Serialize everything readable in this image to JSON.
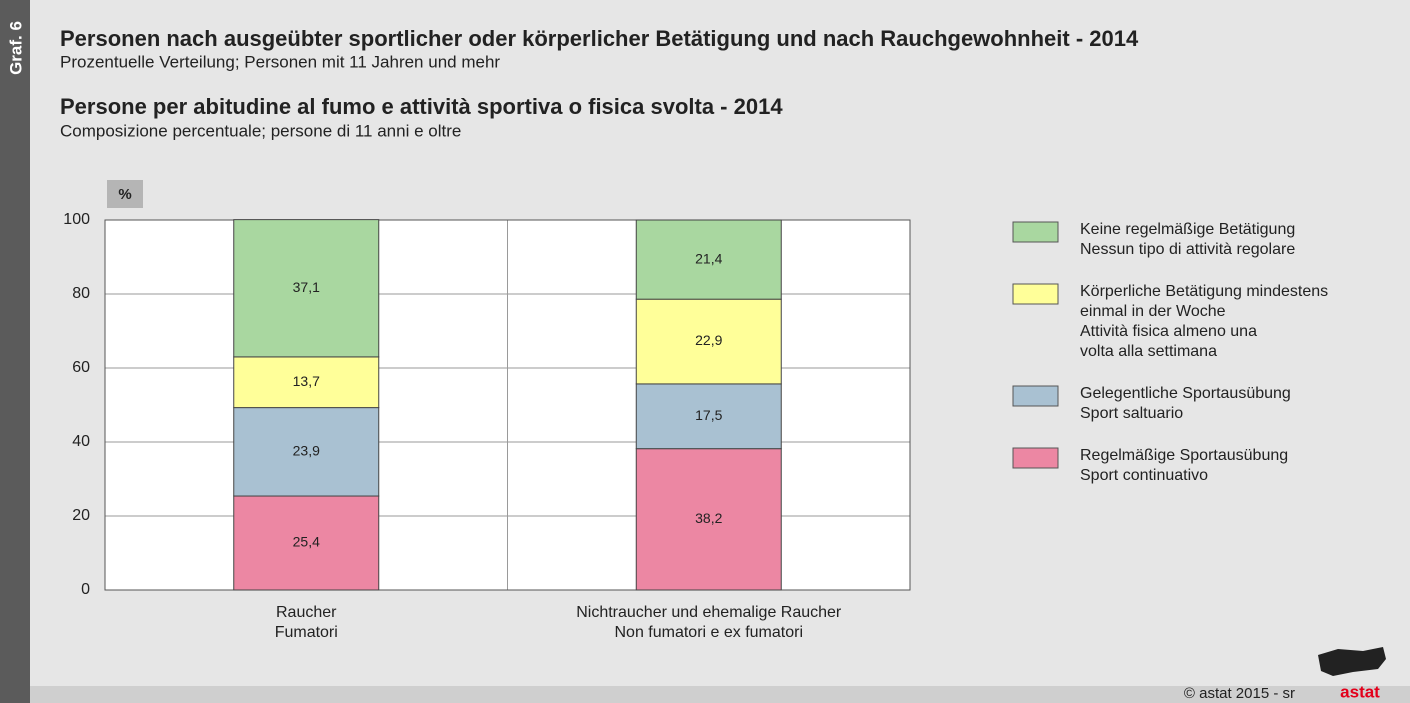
{
  "chart_data": {
    "type": "stacked_bar",
    "figure_label": "Graf. 6",
    "title": "Personen nach ausgeübter sportlicher oder körperlicher Betätigung und nach Rauchgewohnheit - 2014",
    "subtitle": "Prozentuelle Verteilung; Personen mit 11 Jahren und mehr",
    "title_2": "Persone per abitudine al fumo e attività sportiva o fisica svolta - 2014",
    "subtitle_2": "Composizione percentuale; persone di 11 anni e oltre",
    "unit_label": "%",
    "categories": [
      [
        "Raucher",
        "Fumatori"
      ],
      [
        "Nichtraucher und ehemalige Raucher",
        "Non fumatori e ex fumatori"
      ]
    ],
    "series": [
      {
        "name": [
          "Regelmäßige Sportausübung",
          "Sport continuativo"
        ],
        "color": "#ec87a3",
        "values": [
          25.4,
          38.2
        ],
        "value_labels": [
          "25,4",
          "38,2"
        ]
      },
      {
        "name": [
          "Gelegentliche Sportausübung",
          "Sport saltuario"
        ],
        "color": "#a9c1d2",
        "values": [
          23.9,
          17.5
        ],
        "value_labels": [
          "23,9",
          "17,5"
        ]
      },
      {
        "name": [
          "Körperliche Betätigung mindestens",
          "einmal in der Woche",
          "Attività fisica almeno una",
          "volta alla settimana"
        ],
        "color": "#ffff99",
        "values": [
          13.7,
          22.9
        ],
        "value_labels": [
          "13,7",
          "22,9"
        ]
      },
      {
        "name": [
          "Keine regelmäßige Betätigung",
          "Nessun tipo di attività regolare"
        ],
        "color": "#a9d7a0",
        "values": [
          37.1,
          21.4
        ],
        "value_labels": [
          "37,1",
          "21,4"
        ]
      }
    ],
    "ylim": [
      0,
      100
    ],
    "yticks": [
      0,
      20,
      40,
      60,
      80,
      100
    ],
    "grid": true,
    "legend": "right",
    "source": "© astat 2015 - sr",
    "logo_text": "astat"
  }
}
